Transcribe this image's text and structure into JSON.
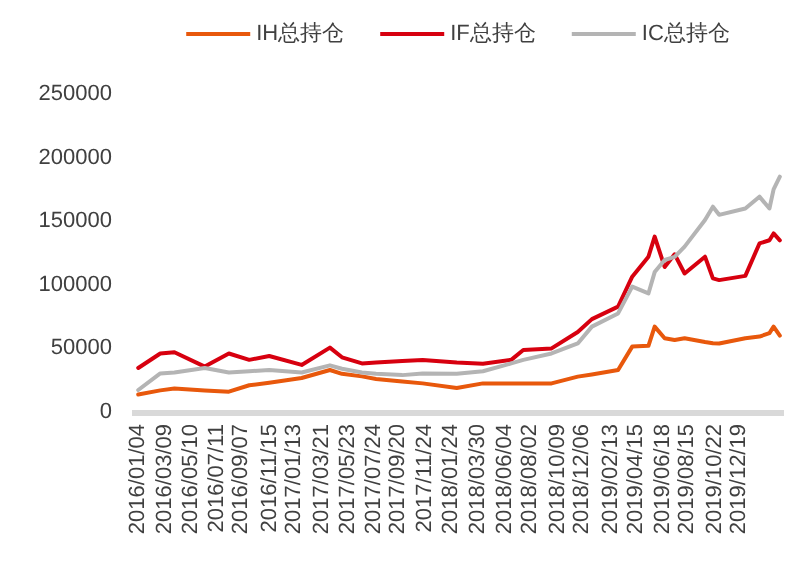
{
  "chart_data": {
    "type": "line",
    "legend": "top",
    "grid": false,
    "marker": "none",
    "line_style": "solid",
    "x": [
      "2016-01-04",
      "2016-02-26",
      "2016-03-31",
      "2016-06-12",
      "2016-08-09",
      "2016-09-27",
      "2016-11-14",
      "2017-01-31",
      "2017-04-09",
      "2017-05-08",
      "2017-06-25",
      "2017-07-29",
      "2017-09-30",
      "2017-11-18",
      "2018-02-08",
      "2018-04-12",
      "2018-06-19",
      "2018-07-18",
      "2018-09-24",
      "2018-11-26",
      "2018-12-30",
      "2019-03-03",
      "2019-04-06",
      "2019-05-15",
      "2019-05-30",
      "2019-06-23",
      "2019-07-17",
      "2019-08-10",
      "2019-09-28",
      "2019-10-17",
      "2019-11-01",
      "2020-01-03",
      "2020-02-06",
      "2020-03-01",
      "2020-03-11",
      "2020-03-26"
    ],
    "series": [
      {
        "name": "IH总持仓",
        "color": "#e8580c",
        "values": [
          13700,
          17000,
          18400,
          17000,
          16000,
          21000,
          23000,
          26700,
          33000,
          30000,
          28000,
          26000,
          24000,
          22500,
          18900,
          22500,
          22500,
          22500,
          22500,
          27800,
          29500,
          33000,
          51400,
          52000,
          67100,
          58000,
          56600,
          58000,
          55000,
          54000,
          53900,
          58000,
          59300,
          62000,
          67100,
          60000
        ]
      },
      {
        "name": "IF总持仓",
        "color": "#d7000f",
        "values": [
          34600,
          46000,
          47000,
          35700,
          46000,
          41000,
          44000,
          37000,
          50600,
          43000,
          38200,
          39000,
          40000,
          40900,
          39000,
          38000,
          41000,
          48700,
          50000,
          62900,
          73000,
          82800,
          106400,
          122100,
          137900,
          114000,
          124000,
          108900,
          122100,
          105000,
          103700,
          107000,
          132500,
          135000,
          140400,
          135000
        ]
      },
      {
        "name": "IC总持仓",
        "color": "#b4b4b4",
        "values": [
          17300,
          30300,
          31000,
          34600,
          31000,
          32000,
          33000,
          31000,
          36700,
          34000,
          31000,
          30000,
          29000,
          30300,
          30000,
          32000,
          38200,
          41000,
          46000,
          53900,
          67100,
          77500,
          98600,
          93200,
          110000,
          119500,
          122000,
          130000,
          150900,
          161400,
          155000,
          160000,
          169300,
          160000,
          175000,
          185000
        ]
      }
    ],
    "xlim": [
      "2015-12-20",
      "2020-04-05"
    ],
    "xticks": [
      {
        "value": "2016-01-04",
        "label": "2016/01/04"
      },
      {
        "value": "2016-03-09",
        "label": "2016/03/09"
      },
      {
        "value": "2016-05-10",
        "label": "2016/05/10"
      },
      {
        "value": "2016-07-11",
        "label": "2016/07/11"
      },
      {
        "value": "2016-09-07",
        "label": "2016/09/07"
      },
      {
        "value": "2016-11-15",
        "label": "2016/11/15"
      },
      {
        "value": "2017-01-13",
        "label": "2017/01/13"
      },
      {
        "value": "2017-03-21",
        "label": "2017/03/21"
      },
      {
        "value": "2017-05-23",
        "label": "2017/05/23"
      },
      {
        "value": "2017-07-24",
        "label": "2017/07/24"
      },
      {
        "value": "2017-09-20",
        "label": "2017/09/20"
      },
      {
        "value": "2017-11-24",
        "label": "2017/11/24"
      },
      {
        "value": "2018-01-24",
        "label": "2018/01/24"
      },
      {
        "value": "2018-03-30",
        "label": "2018/03/30"
      },
      {
        "value": "2018-06-04",
        "label": "2018/06/04"
      },
      {
        "value": "2018-08-02",
        "label": "2018/08/02"
      },
      {
        "value": "2018-10-09",
        "label": "2018/10/09"
      },
      {
        "value": "2018-12-06",
        "label": "2018/12/06"
      },
      {
        "value": "2019-02-13",
        "label": "2019/02/13"
      },
      {
        "value": "2019-04-15",
        "label": "2019/04/15"
      },
      {
        "value": "2019-06-18",
        "label": "2019/06/18"
      },
      {
        "value": "2019-08-15",
        "label": "2019/08/15"
      },
      {
        "value": "2019-10-22",
        "label": "2019/10/22"
      },
      {
        "value": "2019-12-19",
        "label": "2019/12/19"
      }
    ],
    "ylim": [
      0,
      250000
    ],
    "yticks": [
      0,
      50000,
      100000,
      150000,
      200000,
      250000
    ]
  }
}
